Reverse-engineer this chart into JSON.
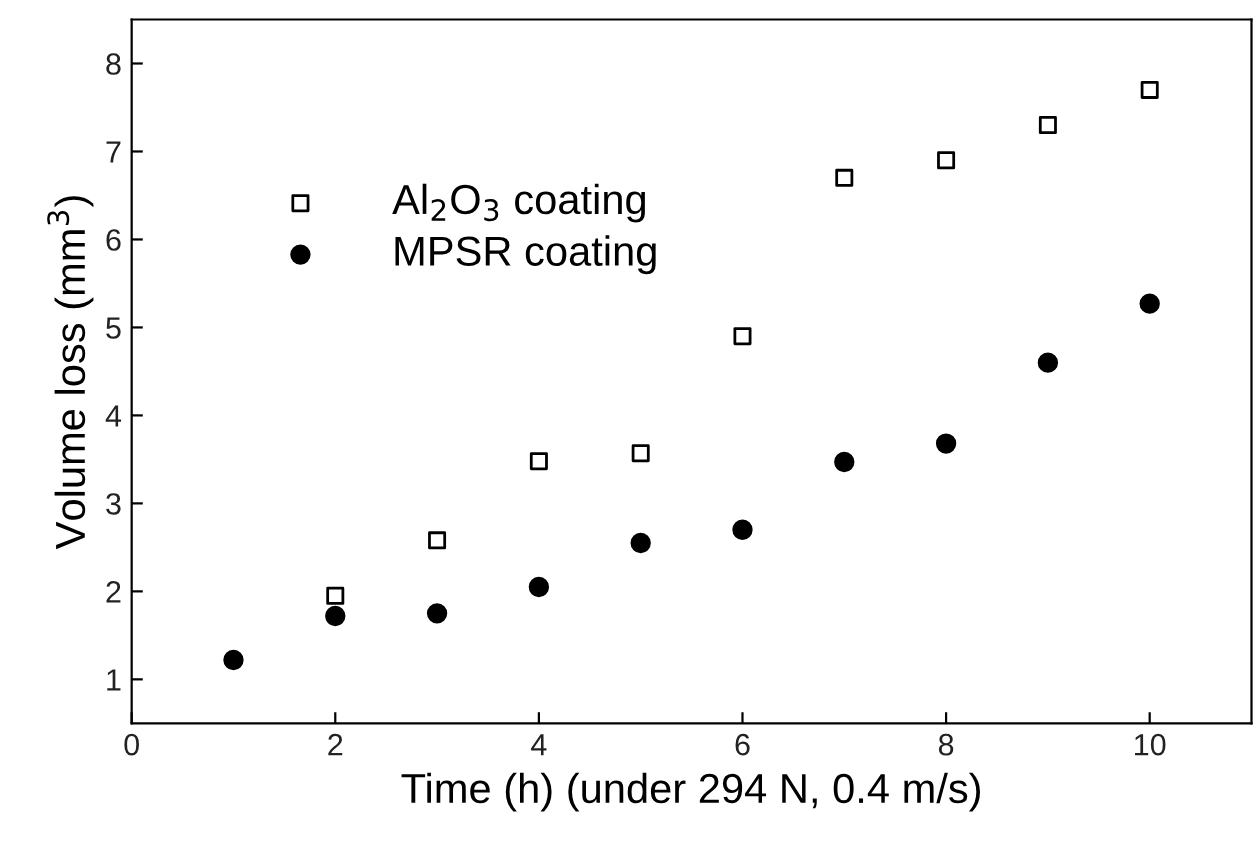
{
  "chart_data": {
    "type": "scatter",
    "xlabel": "Time (h) (under 294 N, 0.4 m/s)",
    "ylabel": "Volume loss (mm$^{3}$)",
    "series": [
      {
        "name": "Al$_{2}$O$_{3}$ coating",
        "color": "#000000",
        "marker": "square",
        "x": [
          2,
          3,
          4,
          5,
          6,
          7,
          8,
          9,
          10
        ],
        "values": [
          1.95,
          2.58,
          3.48,
          3.57,
          4.9,
          6.7,
          6.9,
          7.3,
          7.7
        ]
      },
      {
        "name": "MPSR coating",
        "color": "#000000",
        "marker": "circle",
        "x": [
          1,
          2,
          3,
          4,
          5,
          6,
          7,
          8,
          9,
          10
        ],
        "values": [
          1.22,
          1.72,
          1.75,
          2.05,
          2.55,
          2.7,
          3.47,
          3.68,
          4.6,
          5.27
        ]
      }
    ],
    "xlim": [
      0,
      11
    ],
    "xticks": [
      0,
      2,
      4,
      6,
      8,
      10
    ],
    "ylim": [
      0.5,
      8.5
    ],
    "yticks": [
      1,
      2,
      3,
      4,
      5,
      6,
      7,
      8
    ],
    "grid": false,
    "legend": "top left"
  }
}
